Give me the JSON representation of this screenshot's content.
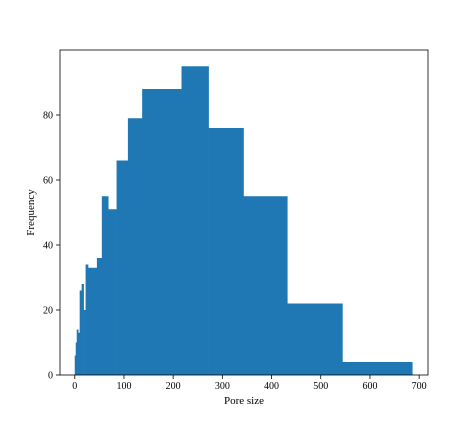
{
  "chart_data": {
    "type": "bar",
    "title": "",
    "xlabel": "Pore size",
    "ylabel": "Frequency",
    "xlim": [
      -30,
      718
    ],
    "ylim": [
      0,
      100
    ],
    "x_ticks": [
      0,
      100,
      200,
      300,
      400,
      500,
      600,
      700
    ],
    "y_ticks": [
      0,
      20,
      40,
      60,
      80
    ],
    "grid": false,
    "color": "#1f77b4",
    "bins": [
      {
        "x0": 0,
        "x1": 2,
        "value": 6
      },
      {
        "x0": 2,
        "x1": 4,
        "value": 10
      },
      {
        "x0": 4,
        "x1": 7,
        "value": 14
      },
      {
        "x0": 7,
        "x1": 10,
        "value": 13
      },
      {
        "x0": 10,
        "x1": 14,
        "value": 26
      },
      {
        "x0": 14,
        "x1": 18,
        "value": 28
      },
      {
        "x0": 18,
        "x1": 22,
        "value": 20
      },
      {
        "x0": 22,
        "x1": 27,
        "value": 34
      },
      {
        "x0": 27,
        "x1": 33,
        "value": 33
      },
      {
        "x0": 33,
        "x1": 45,
        "value": 33
      },
      {
        "x0": 45,
        "x1": 55,
        "value": 36
      },
      {
        "x0": 55,
        "x1": 68,
        "value": 55
      },
      {
        "x0": 68,
        "x1": 85,
        "value": 51
      },
      {
        "x0": 85,
        "x1": 108,
        "value": 66
      },
      {
        "x0": 108,
        "x1": 137,
        "value": 79
      },
      {
        "x0": 137,
        "x1": 217,
        "value": 88
      },
      {
        "x0": 217,
        "x1": 272,
        "value": 95
      },
      {
        "x0": 272,
        "x1": 343,
        "value": 76
      },
      {
        "x0": 343,
        "x1": 432,
        "value": 55
      },
      {
        "x0": 432,
        "x1": 544,
        "value": 22
      },
      {
        "x0": 544,
        "x1": 686,
        "value": 4
      }
    ]
  }
}
